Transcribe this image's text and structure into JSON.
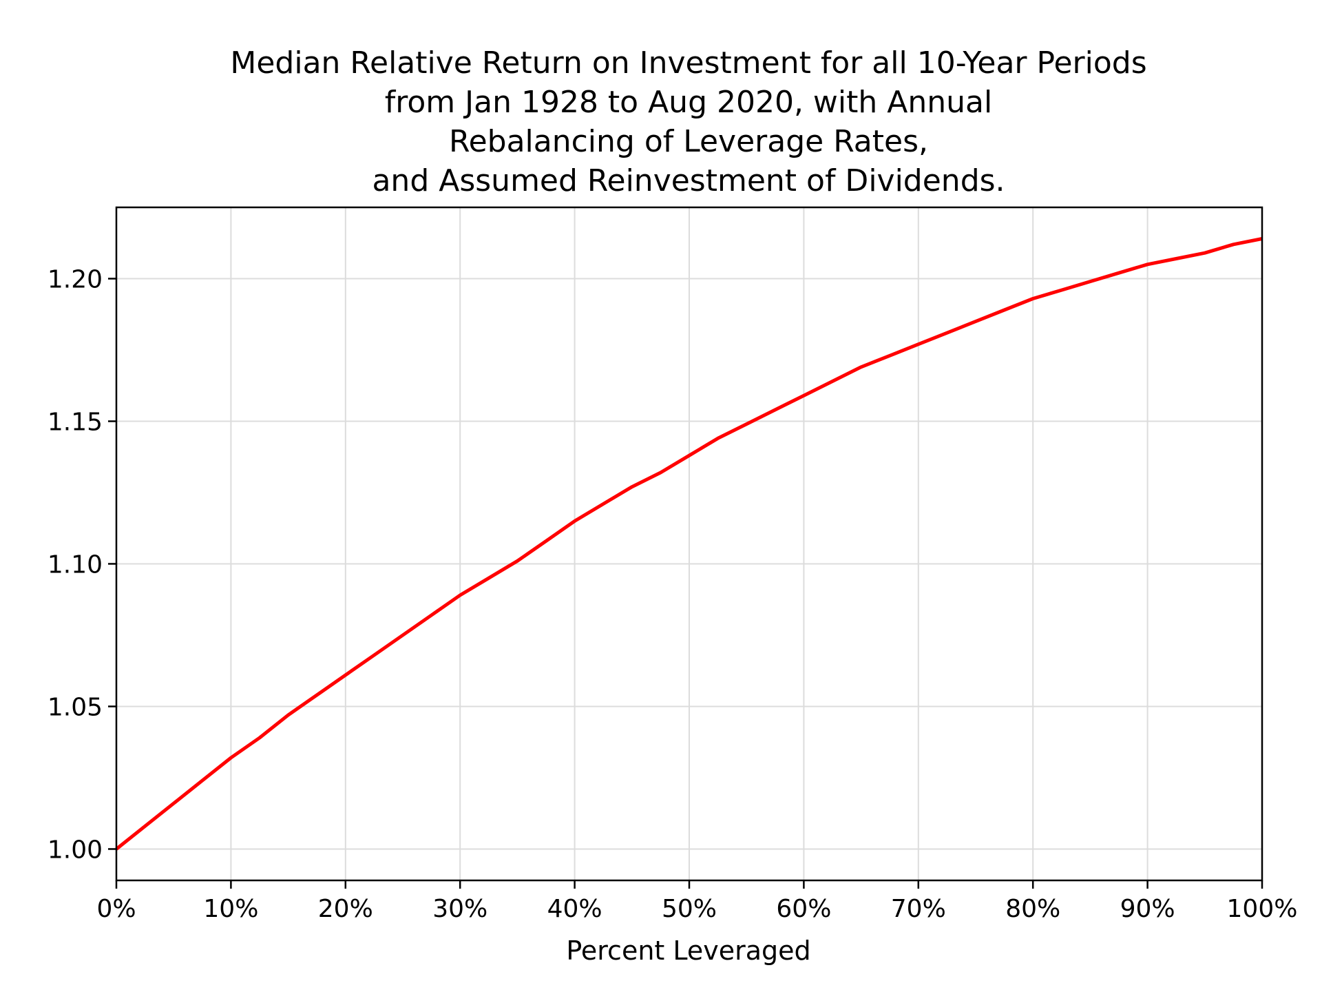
{
  "chart_data": {
    "type": "line",
    "title_lines": [
      "Median Relative Return on Investment for all 10-Year Periods",
      "from Jan 1928 to Aug 2020, with Annual",
      "Rebalancing of Leverage Rates,",
      "and Assumed Reinvestment of Dividends."
    ],
    "xlabel": "Percent Leveraged",
    "ylabel": "",
    "xlim": [
      0,
      100
    ],
    "ylim": [
      0.989,
      1.225
    ],
    "x_ticks": [
      0,
      10,
      20,
      30,
      40,
      50,
      60,
      70,
      80,
      90,
      100
    ],
    "x_tick_labels": [
      "0%",
      "10%",
      "20%",
      "30%",
      "40%",
      "50%",
      "60%",
      "70%",
      "80%",
      "90%",
      "100%"
    ],
    "y_ticks": [
      1.0,
      1.05,
      1.1,
      1.15,
      1.2
    ],
    "y_tick_labels": [
      "1.00",
      "1.05",
      "1.10",
      "1.15",
      "1.20"
    ],
    "grid": true,
    "series": [
      {
        "color": "#ff0000",
        "x": [
          0,
          2.5,
          5,
          7.5,
          10,
          12.5,
          15,
          17.5,
          20,
          22.5,
          25,
          27.5,
          30,
          32.5,
          35,
          37.5,
          40,
          42.5,
          45,
          47.5,
          50,
          52.5,
          55,
          57.5,
          60,
          62.5,
          65,
          67.5,
          70,
          72.5,
          75,
          77.5,
          80,
          82.5,
          85,
          87.5,
          90,
          92.5,
          95,
          97.5,
          100
        ],
        "values": [
          1.0,
          1.008,
          1.016,
          1.024,
          1.032,
          1.039,
          1.047,
          1.054,
          1.061,
          1.068,
          1.075,
          1.082,
          1.089,
          1.095,
          1.101,
          1.108,
          1.115,
          1.121,
          1.127,
          1.132,
          1.138,
          1.144,
          1.149,
          1.154,
          1.159,
          1.164,
          1.169,
          1.173,
          1.177,
          1.181,
          1.185,
          1.189,
          1.193,
          1.196,
          1.199,
          1.202,
          1.205,
          1.207,
          1.209,
          1.212,
          1.214
        ]
      }
    ]
  }
}
